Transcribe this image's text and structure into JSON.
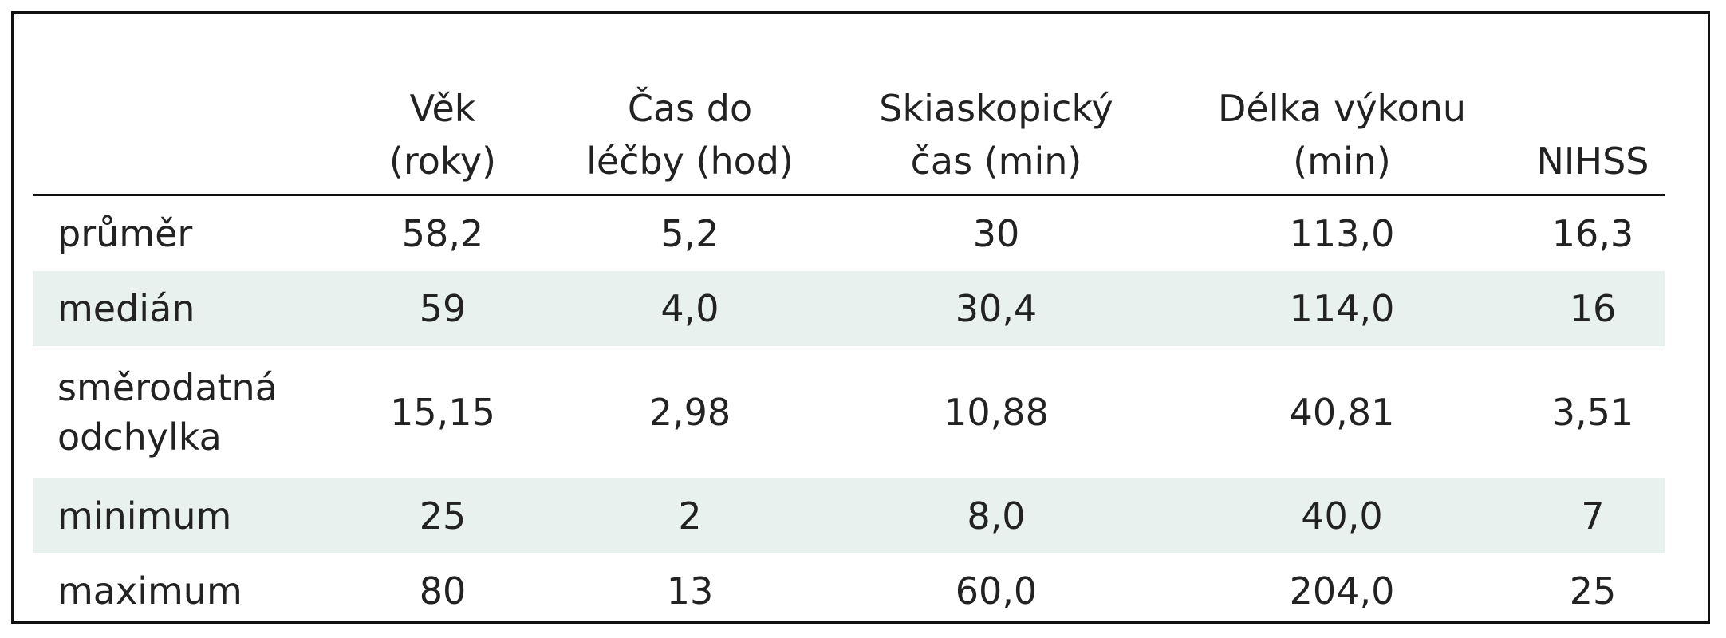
{
  "table": {
    "header": [
      "Věk\n(roky)",
      "Čas do\nléčby (hod)",
      "Skiaskopický\nčas (min)",
      "Délka výkonu\n(min)",
      "NIHSS"
    ],
    "rows": [
      [
        "průměr",
        "58,2",
        "5,2",
        "30",
        "113,0",
        "16,3"
      ],
      [
        "medián",
        "59",
        "4,0",
        "30,4",
        "114,0",
        "16"
      ],
      [
        "směrodatná\nodchylka",
        "15,15",
        "2,98",
        "10,88",
        "40,81",
        "3,51"
      ],
      [
        "minimum",
        "25",
        "2",
        "8,0",
        "40,0",
        "7"
      ],
      [
        "maximum",
        "80",
        "13",
        "60,0",
        "204,0",
        "25"
      ]
    ]
  }
}
